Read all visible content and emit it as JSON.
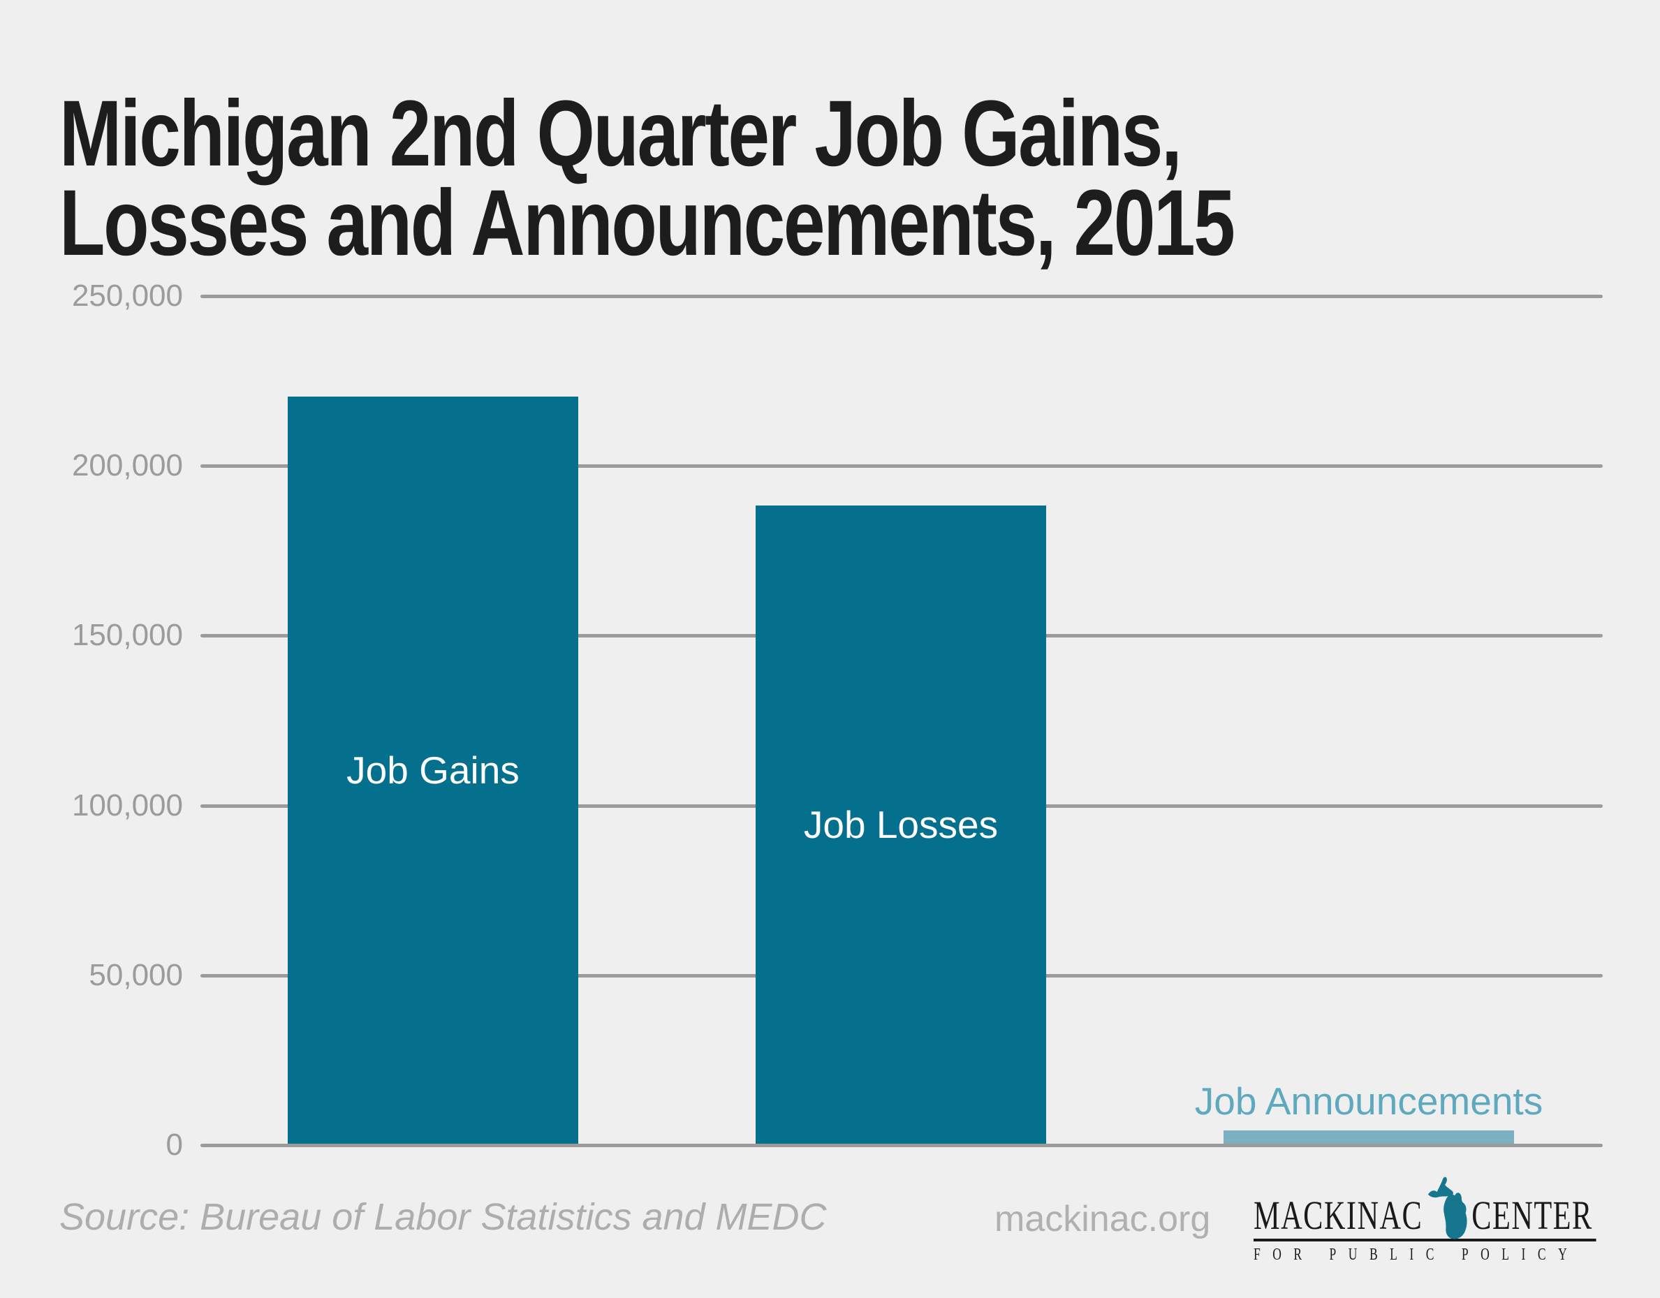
{
  "title": {
    "line1": "Michigan 2nd Quarter Job Gains,",
    "line2": "Losses and Announcements, 2015"
  },
  "chart_data": {
    "type": "bar",
    "title": "Michigan 2nd Quarter Job Gains, Losses and Announcements, 2015",
    "categories": [
      "Job Gains",
      "Job Losses",
      "Job Announcements"
    ],
    "values": [
      220000,
      188000,
      3900
    ],
    "xlabel": "",
    "ylabel": "",
    "ylim": [
      0,
      250000
    ],
    "y_ticks": [
      0,
      50000,
      100000,
      150000,
      200000,
      250000
    ],
    "y_tick_labels": [
      "0",
      "50,000",
      "100,000",
      "150,000",
      "200,000",
      "250,000"
    ],
    "grid": true,
    "legend": false,
    "bar_colors": [
      "#04708e",
      "#04708e",
      "#7db1c1"
    ],
    "bar_label_colors": [
      "#ffffff",
      "#ffffff",
      "#5fa9bf"
    ],
    "bar_label_positions": [
      "inside",
      "inside",
      "above"
    ]
  },
  "footer": {
    "source": "Source: Bureau of Labor Statistics and MEDC",
    "website": "mackinac.org",
    "logo": {
      "word1": "MACKINAC",
      "word2": "CENTER",
      "tagline": "FOR PUBLIC POLICY",
      "icon": "michigan-state-icon",
      "accent_color": "#15768e"
    }
  },
  "colors": {
    "background": "#efefef",
    "bar_teal": "#04708e",
    "bar_light_blue": "#7db1c1",
    "announcement_label": "#5fa9bf",
    "gridline": "#9b9b9b",
    "axis_text": "#9b9b9b",
    "title_text": "#1d1d1d",
    "muted_text": "#adadad",
    "logo_text": "#1a1a1a"
  }
}
